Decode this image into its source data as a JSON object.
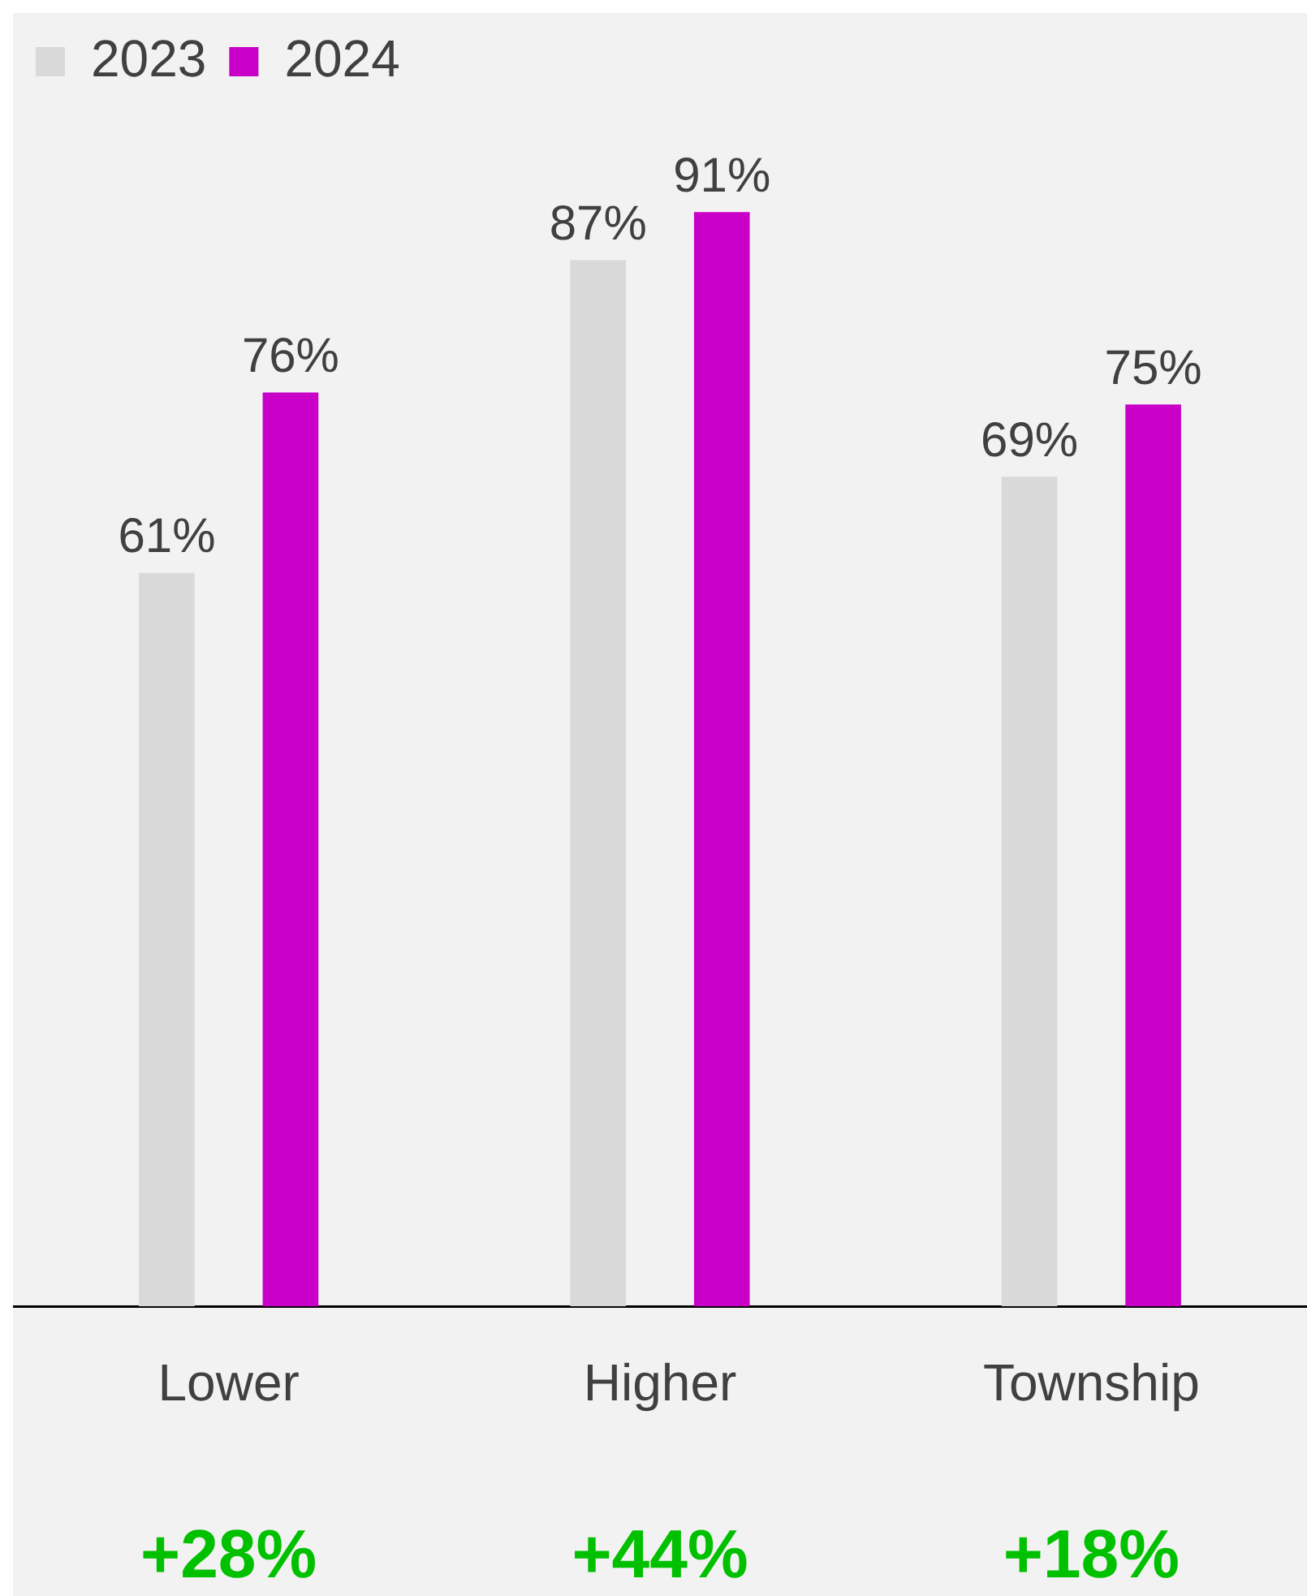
{
  "chart_data": {
    "type": "bar",
    "categories": [
      "Lower",
      "Higher",
      "Township"
    ],
    "series": [
      {
        "name": "2023",
        "color": "#d9d9d9",
        "values": [
          61,
          87,
          69
        ],
        "value_labels": [
          "61%",
          "87%",
          "69%"
        ]
      },
      {
        "name": "2024",
        "color": "#c800c8",
        "values": [
          76,
          91,
          75
        ],
        "value_labels": [
          "76%",
          "91%",
          "75%"
        ]
      }
    ],
    "tick_labels": "x",
    "grid": false,
    "legend": "top left",
    "annotations": [
      "+28%",
      "+44%",
      "+18%"
    ]
  }
}
